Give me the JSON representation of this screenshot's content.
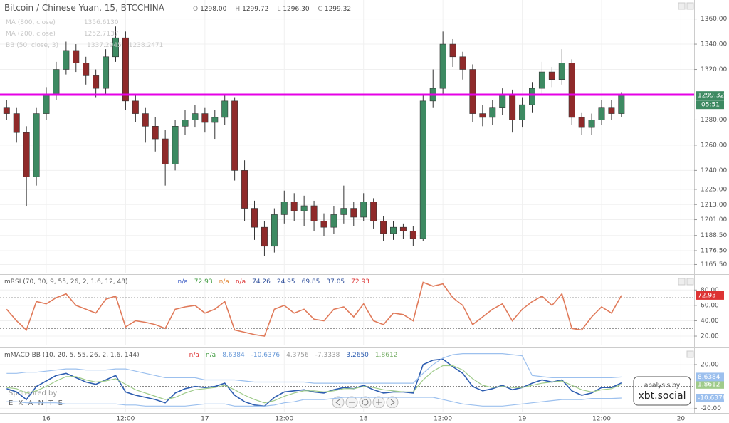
{
  "chart_data": [
    {
      "type": "candlestick",
      "title": "Bitcoin / Chinese Yuan, 15, BTCCHINA",
      "ohlc_header": [
        {
          "label": "O",
          "value": "1298.00"
        },
        {
          "label": "H",
          "value": "1299.72"
        },
        {
          "label": "L",
          "value": "1296.30"
        },
        {
          "label": "C",
          "value": "1299.32"
        }
      ],
      "indicators": [
        [
          "MA (800, close)",
          "1356.6130"
        ],
        [
          "MA (200, close)",
          "1252.7137"
        ],
        [
          "BB (50, close, 3)",
          "1337.2945",
          "1238.2471"
        ]
      ],
      "x": [
        -6,
        -4.5,
        -3,
        -1.5,
        0,
        1.5,
        3,
        4.5,
        6,
        7.5,
        9,
        10.5,
        12,
        13.5,
        15,
        16.5,
        18,
        19.5,
        21,
        22.5,
        24,
        25.5,
        27,
        28.5,
        30,
        31.5,
        33,
        34.5,
        36,
        37.5,
        39,
        40.5,
        42,
        43.5,
        45,
        46.5,
        48,
        49.5,
        51,
        52.5,
        54,
        55.5,
        57,
        58.5,
        60,
        61.5,
        63,
        64.5,
        66,
        67.5,
        69,
        70.5,
        72,
        73.5,
        75,
        76.5,
        78,
        79.5,
        81,
        82.5,
        84,
        85.5,
        87
      ],
      "open": [
        1290,
        1285,
        1270,
        1235,
        1285,
        1300,
        1320,
        1335,
        1325,
        1315,
        1305,
        1330,
        1345,
        1295,
        1285,
        1275,
        1265,
        1245,
        1275,
        1280,
        1285,
        1278,
        1282,
        1295,
        1240,
        1210,
        1195,
        1180,
        1205,
        1215,
        1208,
        1212,
        1200,
        1195,
        1205,
        1210,
        1203,
        1215,
        1200,
        1190,
        1195,
        1192,
        1186,
        1295,
        1305,
        1340,
        1330,
        1320,
        1285,
        1282,
        1290,
        1300,
        1280,
        1292,
        1305,
        1318,
        1312,
        1325,
        1282,
        1274,
        1280,
        1290,
        1285
      ],
      "high": [
        1296,
        1290,
        1275,
        1290,
        1306,
        1326,
        1342,
        1340,
        1330,
        1320,
        1336,
        1354,
        1350,
        1300,
        1290,
        1282,
        1272,
        1280,
        1288,
        1292,
        1290,
        1288,
        1300,
        1298,
        1248,
        1216,
        1200,
        1210,
        1224,
        1222,
        1220,
        1216,
        1206,
        1212,
        1228,
        1215,
        1222,
        1218,
        1204,
        1200,
        1198,
        1196,
        1300,
        1320,
        1350,
        1344,
        1334,
        1324,
        1292,
        1296,
        1305,
        1304,
        1298,
        1310,
        1326,
        1322,
        1336,
        1328,
        1286,
        1285,
        1296,
        1296,
        1302
      ],
      "low": [
        1280,
        1262,
        1212,
        1228,
        1280,
        1296,
        1316,
        1318,
        1308,
        1298,
        1300,
        1326,
        1288,
        1278,
        1262,
        1255,
        1228,
        1240,
        1268,
        1274,
        1270,
        1265,
        1276,
        1232,
        1200,
        1185,
        1172,
        1175,
        1198,
        1200,
        1196,
        1192,
        1188,
        1190,
        1198,
        1196,
        1200,
        1194,
        1184,
        1185,
        1186,
        1180,
        1184,
        1290,
        1300,
        1322,
        1312,
        1278,
        1275,
        1276,
        1284,
        1270,
        1274,
        1286,
        1300,
        1306,
        1308,
        1276,
        1268,
        1268,
        1276,
        1280,
        1282
      ],
      "close": [
        1285,
        1270,
        1235,
        1285,
        1300,
        1320,
        1335,
        1325,
        1315,
        1305,
        1330,
        1345,
        1295,
        1285,
        1275,
        1265,
        1245,
        1275,
        1280,
        1285,
        1278,
        1282,
        1295,
        1240,
        1210,
        1195,
        1180,
        1205,
        1215,
        1208,
        1212,
        1200,
        1195,
        1205,
        1210,
        1203,
        1215,
        1200,
        1190,
        1195,
        1192,
        1186,
        1295,
        1305,
        1340,
        1330,
        1320,
        1285,
        1282,
        1290,
        1300,
        1280,
        1292,
        1305,
        1318,
        1312,
        1325,
        1282,
        1274,
        1280,
        1290,
        1285,
        1299.32
      ],
      "up_color": "#3d8a62",
      "down_color": "#8f2a2a",
      "xlim": [
        -7,
        98
      ],
      "ylim": [
        1159,
        1375
      ],
      "yticks": [
        {
          "value": 1360,
          "label": "1360.00"
        },
        {
          "value": 1340,
          "label": "1340.00"
        },
        {
          "value": 1320,
          "label": "1320.00"
        },
        {
          "value": 1280,
          "label": "1280.00"
        },
        {
          "value": 1260,
          "label": "1260.00"
        },
        {
          "value": 1240,
          "label": "1240.00"
        },
        {
          "value": 1225,
          "label": "1225.00"
        },
        {
          "value": 1213,
          "label": "1213.00"
        },
        {
          "value": 1201,
          "label": "1201.00"
        },
        {
          "value": 1188.5,
          "label": "1188.50"
        },
        {
          "value": 1176.5,
          "label": "1176.50"
        },
        {
          "value": 1165.5,
          "label": "1165.50"
        }
      ],
      "xticks": [
        {
          "value": 0,
          "label": "16"
        },
        {
          "value": 12,
          "label": "12:00"
        },
        {
          "value": 24,
          "label": "17"
        },
        {
          "value": 36,
          "label": "12:00"
        },
        {
          "value": 48,
          "label": "18"
        },
        {
          "value": 60,
          "label": "12:00"
        },
        {
          "value": 72,
          "label": "19"
        },
        {
          "value": 84,
          "label": "12:00"
        },
        {
          "value": 96,
          "label": "20"
        }
      ],
      "hline": {
        "value": 1300,
        "color": "#e600e6"
      },
      "last_color": "#3d8a62",
      "countdown": "05:51"
    },
    {
      "type": "line",
      "title": "mRSI (70, 30, 9, 55, 26, 2, 1.6, 12, 48)",
      "header_values": [
        {
          "text": "n/a",
          "color": "#3f5fc6"
        },
        {
          "text": "72.93",
          "color": "#3d9a3d"
        },
        {
          "text": "n/a",
          "color": "#e38a3a"
        },
        {
          "text": "n/a",
          "color": "#d33"
        },
        {
          "text": "74.26",
          "color": "#2d4d9a"
        },
        {
          "text": "24.95",
          "color": "#2d4d9a"
        },
        {
          "text": "69.85",
          "color": "#2d4d9a"
        },
        {
          "text": "37.05",
          "color": "#2d4d9a"
        },
        {
          "text": "72.93",
          "color": "#d33"
        }
      ],
      "series": [
        {
          "color": "#e07a5a",
          "values": [
            55,
            40,
            28,
            65,
            62,
            70,
            75,
            60,
            55,
            50,
            68,
            72,
            32,
            40,
            38,
            35,
            30,
            55,
            58,
            60,
            50,
            55,
            65,
            28,
            25,
            22,
            20,
            55,
            60,
            50,
            55,
            42,
            40,
            55,
            58,
            45,
            62,
            40,
            35,
            50,
            48,
            40,
            90,
            85,
            88,
            70,
            60,
            35,
            45,
            55,
            62,
            40,
            55,
            65,
            72,
            60,
            75,
            30,
            28,
            45,
            58,
            50,
            72.93
          ]
        }
      ],
      "ylim": [
        8,
        96
      ],
      "yticks": [
        {
          "value": 80,
          "label": "80.00"
        },
        {
          "value": 60,
          "label": "60.00"
        },
        {
          "value": 40,
          "label": "40.00"
        },
        {
          "value": 20,
          "label": "20.00"
        }
      ],
      "levels": [
        70,
        30
      ],
      "last_color": "#d33"
    },
    {
      "type": "line",
      "title": "mMACD BB (10, 20, 5, 55, 26, 2, 1.6, 144)",
      "header_values": [
        {
          "text": "n/a",
          "color": "#d33"
        },
        {
          "text": "n/a",
          "color": "#3d9a3d"
        },
        {
          "text": "8.6384",
          "color": "#6a9ad8"
        },
        {
          "text": "-10.6376",
          "color": "#6a9ad8"
        },
        {
          "text": "4.3756",
          "color": "#999"
        },
        {
          "text": "-7.3338",
          "color": "#999"
        },
        {
          "text": "3.2650",
          "color": "#2d5db0"
        },
        {
          "text": "1.8612",
          "color": "#7ab06a"
        }
      ],
      "series": [
        {
          "color": "#2d5db0",
          "values": [
            -2,
            -5,
            -12,
            0,
            5,
            10,
            12,
            8,
            4,
            2,
            6,
            10,
            -5,
            -8,
            -10,
            -12,
            -15,
            -6,
            -2,
            0,
            -1,
            0,
            3,
            -8,
            -14,
            -17,
            -18,
            -10,
            -5,
            -4,
            -3,
            -5,
            -6,
            -3,
            -1,
            -2,
            1,
            -3,
            -6,
            -5,
            -5,
            -6,
            20,
            24,
            25,
            18,
            12,
            0,
            -4,
            -2,
            1,
            -3,
            -1,
            3,
            6,
            4,
            6,
            -4,
            -8,
            -6,
            -1,
            -1,
            3.265
          ]
        },
        {
          "color": "#9fcb8a",
          "values": [
            -1,
            -2,
            -6,
            -4,
            0,
            5,
            9,
            9,
            6,
            4,
            5,
            7,
            2,
            -3,
            -6,
            -9,
            -12,
            -10,
            -6,
            -3,
            -2,
            -1,
            1,
            -3,
            -8,
            -12,
            -15,
            -13,
            -9,
            -6,
            -4,
            -4,
            -5,
            -4,
            -2,
            -2,
            0,
            -1,
            -3,
            -4,
            -5,
            -5,
            6,
            14,
            19,
            19,
            15,
            7,
            1,
            -1,
            0,
            -1,
            -1,
            1,
            3,
            4,
            5,
            1,
            -3,
            -5,
            -3,
            -2,
            1.8612
          ]
        },
        {
          "color": "#9cc0ee",
          "values": [
            12,
            12,
            13,
            13,
            14,
            15,
            16,
            16,
            15,
            15,
            15,
            16,
            16,
            14,
            12,
            10,
            8,
            8,
            8,
            8,
            6,
            6,
            6,
            6,
            5,
            4,
            4,
            4,
            4,
            4,
            4,
            3,
            3,
            3,
            3,
            3,
            3,
            3,
            3,
            3,
            3,
            3,
            12,
            20,
            26,
            29,
            30,
            30,
            30,
            30,
            30,
            29,
            28,
            10,
            9,
            8,
            8,
            8,
            8,
            8,
            8,
            8,
            8.6384
          ]
        },
        {
          "color": "#9cc0ee",
          "values": [
            -14,
            -14,
            -15,
            -15,
            -15,
            -15,
            -16,
            -16,
            -16,
            -16,
            -16,
            -16,
            -17,
            -17,
            -18,
            -18,
            -18,
            -18,
            -18,
            -17,
            -16,
            -16,
            -16,
            -18,
            -18,
            -18,
            -18,
            -17,
            -15,
            -14,
            -12,
            -12,
            -12,
            -11,
            -10,
            -10,
            -10,
            -10,
            -10,
            -10,
            -10,
            -10,
            -10,
            -10,
            -12,
            -14,
            -16,
            -17,
            -18,
            -18,
            -18,
            -17,
            -16,
            -15,
            -14,
            -13,
            -12,
            -12,
            -12,
            -11,
            -11,
            -11,
            -10.6376
          ]
        }
      ],
      "ylim": [
        -23,
        33
      ],
      "yticks": [
        {
          "value": 20,
          "label": "20.00"
        },
        {
          "value": -20,
          "label": "-20.00"
        }
      ],
      "levels": [
        0
      ]
    }
  ],
  "watermark": {
    "sponsor": "Sponsored by",
    "brand": "E X A N T E"
  },
  "badge": {
    "line1": "analysis by",
    "line2": "xbt.social"
  }
}
